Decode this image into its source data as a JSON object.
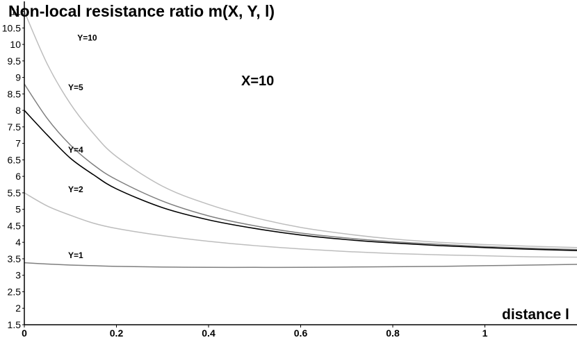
{
  "chart_data": {
    "type": "line",
    "title": "Non-local resistance ratio m(X, Y, l)",
    "xlabel": "distance l",
    "ylabel": "",
    "annotation": "X=10",
    "xlim": [
      0,
      1.2
    ],
    "ylim": [
      1.5,
      11.2
    ],
    "xticks": [
      0,
      0.2,
      0.4,
      0.6,
      0.8,
      1
    ],
    "xtick_labels": [
      "0",
      "0.2",
      "0.4",
      "0.6",
      "0.8",
      "1"
    ],
    "yticks": [
      1.5,
      2,
      2.5,
      3,
      3.5,
      4,
      4.5,
      5,
      5.5,
      6,
      6.5,
      7,
      7.5,
      8,
      8.5,
      9,
      9.5,
      10,
      10.5,
      11
    ],
    "ytick_labels": [
      "1.5",
      "2",
      "2.5",
      "3",
      "3.5",
      "4",
      "4.5",
      "5",
      "5.5",
      "6",
      "6.5",
      "7",
      "7.5",
      "8",
      "8.5",
      "9",
      "9.5",
      "10",
      "10.5",
      "11"
    ],
    "grid": false,
    "x": [
      0,
      0.05,
      0.1,
      0.15,
      0.2,
      0.3,
      0.4,
      0.5,
      0.6,
      0.7,
      0.8,
      0.9,
      1.0,
      1.1,
      1.2
    ],
    "series": [
      {
        "name": "Y=10",
        "color": "#bdbdbd",
        "label_at": [
          0.1,
          10.2
        ],
        "values": [
          11.0,
          9.4,
          8.2,
          7.3,
          6.6,
          5.7,
          5.15,
          4.75,
          4.45,
          4.25,
          4.1,
          4.0,
          3.93,
          3.88,
          3.84
        ]
      },
      {
        "name": "Y=5",
        "color": "#7f7f7f",
        "label_at": [
          0.08,
          8.7
        ],
        "values": [
          8.8,
          7.75,
          6.95,
          6.35,
          5.9,
          5.25,
          4.8,
          4.5,
          4.28,
          4.13,
          4.02,
          3.94,
          3.87,
          3.82,
          3.78
        ]
      },
      {
        "name": "Y=4",
        "color": "#000000",
        "label_at": [
          0.08,
          6.8
        ],
        "values": [
          8.0,
          7.25,
          6.55,
          6.05,
          5.62,
          5.05,
          4.68,
          4.42,
          4.22,
          4.08,
          3.98,
          3.9,
          3.84,
          3.79,
          3.75
        ]
      },
      {
        "name": "Y=2",
        "color": "#bdbdbd",
        "label_at": [
          0.08,
          5.6
        ],
        "values": [
          5.5,
          5.1,
          4.82,
          4.58,
          4.42,
          4.2,
          4.03,
          3.9,
          3.8,
          3.72,
          3.66,
          3.62,
          3.59,
          3.56,
          3.55
        ]
      },
      {
        "name": "Y=1",
        "color": "#7f7f7f",
        "label_at": [
          0.08,
          3.6
        ],
        "values": [
          3.38,
          3.34,
          3.31,
          3.29,
          3.27,
          3.25,
          3.24,
          3.24,
          3.24,
          3.25,
          3.26,
          3.27,
          3.29,
          3.31,
          3.33
        ]
      }
    ]
  }
}
